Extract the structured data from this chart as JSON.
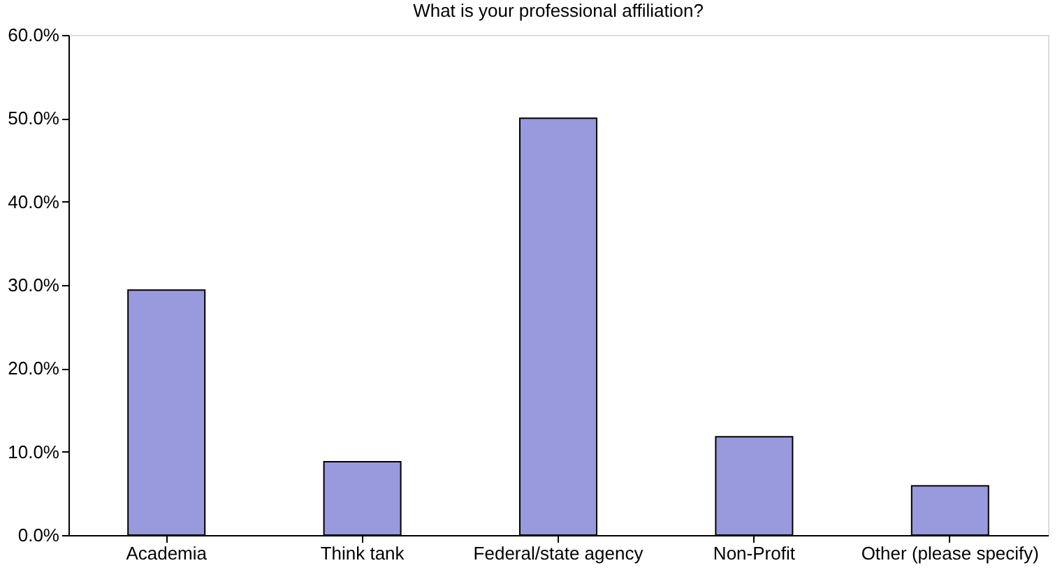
{
  "chart_data": {
    "type": "bar",
    "title": "What is your professional affiliation?",
    "categories": [
      "Academia",
      "Think tank",
      "Federal/state agency",
      "Non-Profit",
      "Other (please specify)"
    ],
    "values": [
      29.4,
      8.8,
      50.0,
      11.8,
      5.9
    ],
    "color": "#9999dd",
    "ylim": [
      0,
      60
    ],
    "yticks": [
      {
        "value": 0,
        "label": "0.0%"
      },
      {
        "value": 10,
        "label": "10.0%"
      },
      {
        "value": 20,
        "label": "20.0%"
      },
      {
        "value": 30,
        "label": "30.0%"
      },
      {
        "value": 40,
        "label": "40.0%"
      },
      {
        "value": 50,
        "label": "50.0%"
      },
      {
        "value": 60,
        "label": "60.0%"
      }
    ],
    "grid": false
  }
}
